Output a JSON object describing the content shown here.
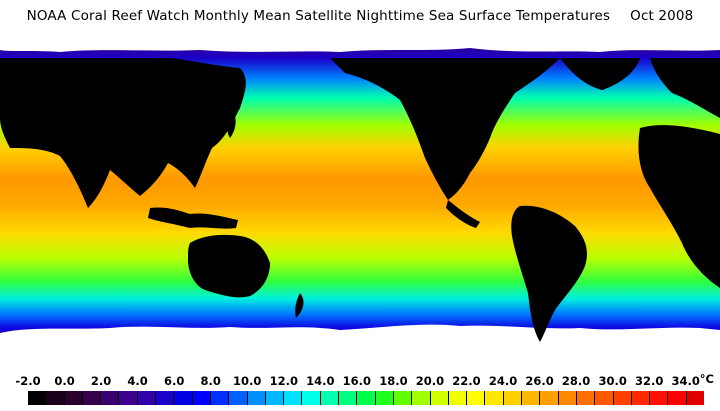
{
  "title": {
    "main": "NOAA Coral Reef Watch Monthly Mean Satellite Nighttime Sea Surface Temperatures",
    "date": "Oct 2008"
  },
  "colorbar": {
    "unit": "°C",
    "tick_labels": [
      "-2.0",
      "0.0",
      "2.0",
      "4.0",
      "6.0",
      "8.0",
      "10.0",
      "12.0",
      "14.0",
      "16.0",
      "18.0",
      "20.0",
      "22.0",
      "24.0",
      "26.0",
      "28.0",
      "30.0",
      "32.0",
      "34.0"
    ],
    "range": [
      -2.0,
      35.0
    ],
    "step": 1.0,
    "colors": [
      "#000000",
      "#1a001a",
      "#2a002e",
      "#38004a",
      "#3a0070",
      "#3c0090",
      "#3000a8",
      "#1a00c8",
      "#0000e0",
      "#0000ff",
      "#0030ff",
      "#0060ff",
      "#0090ff",
      "#00b8ff",
      "#00e0ff",
      "#00ffe8",
      "#00ffb0",
      "#00ff80",
      "#00ff48",
      "#20ff20",
      "#60ff00",
      "#a0ff00",
      "#d0ff00",
      "#f0ff00",
      "#ffff00",
      "#ffe800",
      "#ffd000",
      "#ffb800",
      "#ffa000",
      "#ff8800",
      "#ff7000",
      "#ff5800",
      "#ff4000",
      "#ff2800",
      "#ff1000",
      "#ff0000",
      "#e00000"
    ]
  }
}
